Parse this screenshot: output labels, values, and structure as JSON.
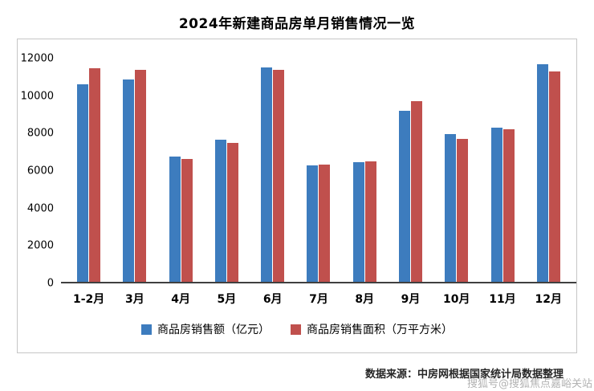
{
  "title": "2024年新建商品房单月销售情况一览",
  "chart_data": {
    "type": "bar",
    "title": "2024年新建商品房单月销售情况一览",
    "categories": [
      "1-2月",
      "3月",
      "4月",
      "5月",
      "6月",
      "7月",
      "8月",
      "9月",
      "10月",
      "11月",
      "12月"
    ],
    "series": [
      {
        "name": "商品房销售额（亿元）",
        "color": "#3d7cbe",
        "values": [
          10550,
          10800,
          6700,
          7600,
          11450,
          6200,
          6400,
          9150,
          7900,
          8250,
          11600
        ]
      },
      {
        "name": "商品房销售面积（万平方米）",
        "color": "#c0504d",
        "values": [
          11400,
          11300,
          6550,
          7400,
          11300,
          6250,
          6450,
          9650,
          7650,
          8150,
          11250
        ]
      }
    ],
    "ylim": [
      0,
      12000
    ],
    "yticks": [
      0,
      2000,
      4000,
      6000,
      8000,
      10000,
      12000
    ],
    "grid": false,
    "legend_position": "bottom"
  },
  "footer": {
    "source": "数据来源：中房网根据国家统计局数据整理",
    "watermark": "搜狐号@搜狐焦点嘉峪关站"
  }
}
